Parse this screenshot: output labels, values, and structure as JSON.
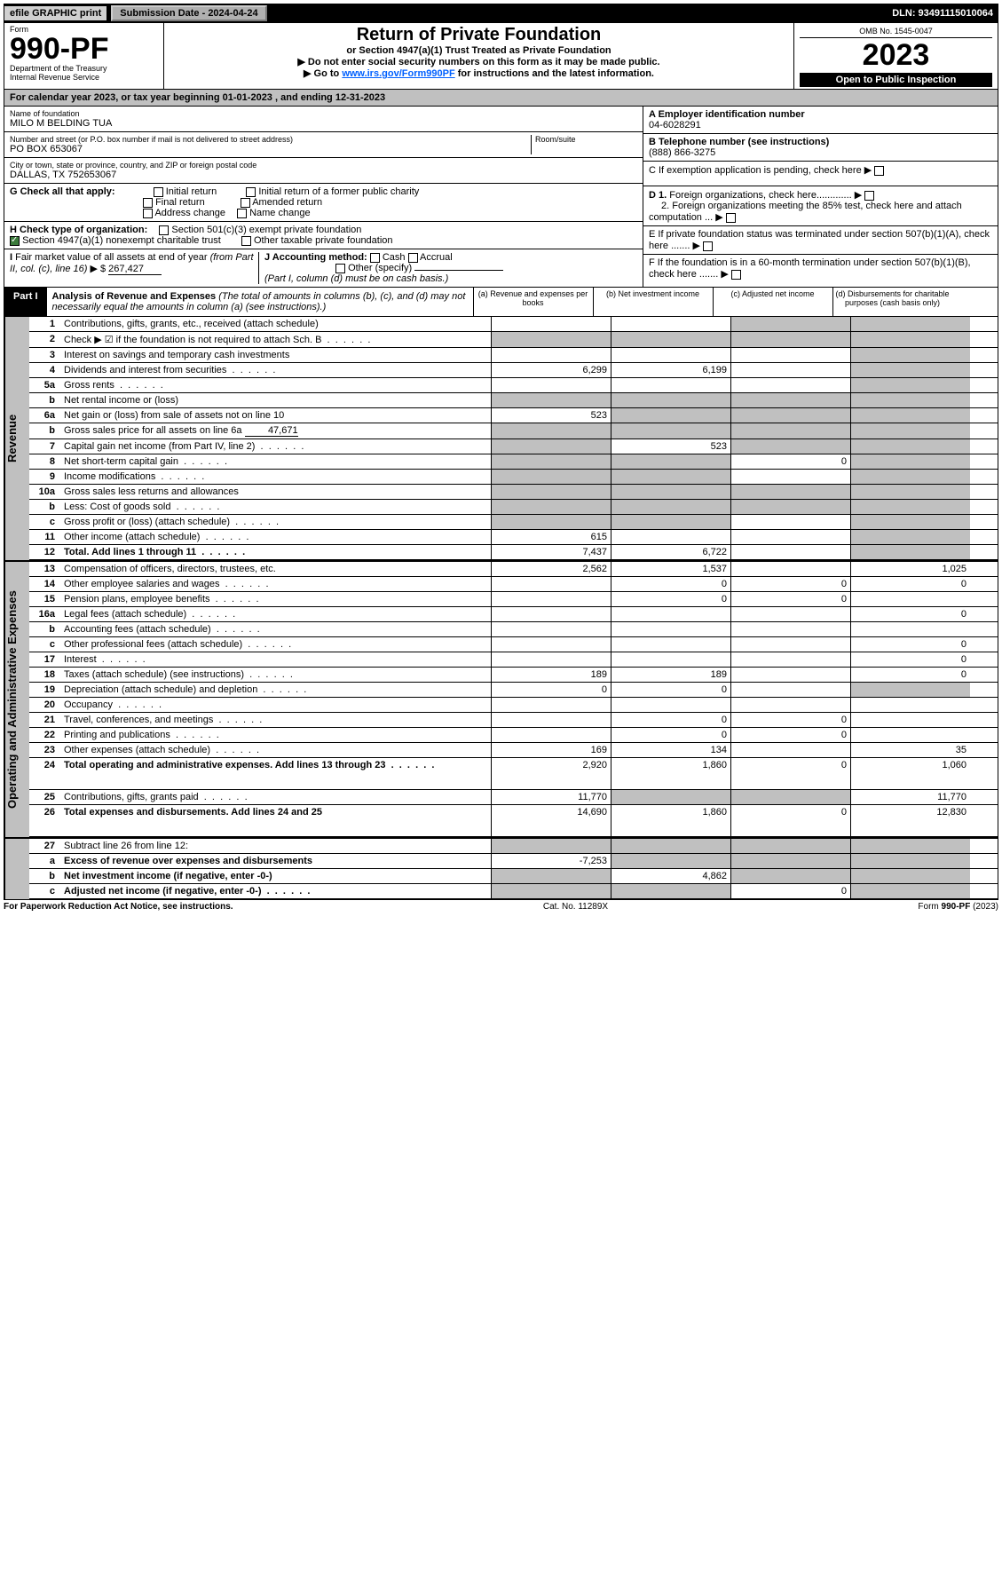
{
  "topbar": {
    "efile": "efile GRAPHIC print",
    "submission": "Submission Date - 2024-04-24",
    "dln": "DLN: 93491115010064"
  },
  "header": {
    "form_word": "Form",
    "form_num": "990-PF",
    "dept": "Department of the Treasury",
    "irs": "Internal Revenue Service",
    "title": "Return of Private Foundation",
    "subtitle": "or Section 4947(a)(1) Trust Treated as Private Foundation",
    "note1": "▶ Do not enter social security numbers on this form as it may be made public.",
    "note2_pre": "▶ Go to ",
    "note2_link": "www.irs.gov/Form990PF",
    "note2_post": " for instructions and the latest information.",
    "omb": "OMB No. 1545-0047",
    "year": "2023",
    "open": "Open to Public Inspection"
  },
  "calendar": {
    "pre": "For calendar year 2023, or tax year beginning ",
    "start": "01-01-2023",
    "mid": " , and ending ",
    "end": "12-31-2023"
  },
  "identity": {
    "name_lbl": "Name of foundation",
    "name": "MILO M BELDING TUA",
    "addr_lbl": "Number and street (or P.O. box number if mail is not delivered to street address)",
    "addr": "PO BOX 653067",
    "room_lbl": "Room/suite",
    "city_lbl": "City or town, state or province, country, and ZIP or foreign postal code",
    "city": "DALLAS, TX  752653067",
    "ein_lbl": "A Employer identification number",
    "ein": "04-6028291",
    "tel_lbl": "B Telephone number (see instructions)",
    "tel": "(888) 866-3275",
    "c_lbl": "C If exemption application is pending, check here",
    "d1": "D 1. Foreign organizations, check here.............",
    "d2": "2. Foreign organizations meeting the 85% test, check here and attach computation ...",
    "e": "E   If private foundation status was terminated under section 507(b)(1)(A), check here .......",
    "f": "F   If the foundation is in a 60-month termination under section 507(b)(1)(B), check here .......",
    "g_lbl": "G Check all that apply:",
    "g_opts": [
      "Initial return",
      "Final return",
      "Address change",
      "Initial return of a former public charity",
      "Amended return",
      "Name change"
    ],
    "h_lbl": "H Check type of organization:",
    "h1": "Section 501(c)(3) exempt private foundation",
    "h2": "Section 4947(a)(1) nonexempt charitable trust",
    "h3": "Other taxable private foundation",
    "i_lbl": "I Fair market value of all assets at end of year (from Part II, col. (c), line 16) ▶ $",
    "i_val": "267,427",
    "j_lbl": "J Accounting method:",
    "j_cash": "Cash",
    "j_accrual": "Accrual",
    "j_other": "Other (specify)",
    "j_note": "(Part I, column (d) must be on cash basis.)"
  },
  "part1": {
    "tab": "Part I",
    "title": "Analysis of Revenue and Expenses",
    "title_note": " (The total of amounts in columns (b), (c), and (d) may not necessarily equal the amounts in column (a) (see instructions).)",
    "cols": {
      "a": "(a) Revenue and expenses per books",
      "b": "(b) Net investment income",
      "c": "(c) Adjusted net income",
      "d": "(d) Disbursements for charitable purposes (cash basis only)"
    }
  },
  "sidebars": {
    "rev": "Revenue",
    "exp": "Operating and Administrative Expenses"
  },
  "rows": [
    {
      "n": "1",
      "d": "Contributions, gifts, grants, etc., received (attach schedule)",
      "a": "",
      "b": "",
      "c": "g",
      "dcol": "g"
    },
    {
      "n": "2",
      "d": "Check ▶ ☑ if the foundation is not required to attach Sch. B",
      "dots": true,
      "a": "g",
      "b": "g",
      "c": "g",
      "dcol": "g",
      "check": true,
      "bold_not": true
    },
    {
      "n": "3",
      "d": "Interest on savings and temporary cash investments",
      "a": "",
      "b": "",
      "c": "",
      "dcol": "g"
    },
    {
      "n": "4",
      "d": "Dividends and interest from securities",
      "dots": true,
      "a": "6,299",
      "b": "6,199",
      "c": "",
      "dcol": "g"
    },
    {
      "n": "5a",
      "d": "Gross rents",
      "dots": true,
      "a": "",
      "b": "",
      "c": "",
      "dcol": "g"
    },
    {
      "n": "b",
      "d": "Net rental income or (loss)",
      "inset": true,
      "a": "g",
      "b": "g",
      "c": "g",
      "dcol": "g"
    },
    {
      "n": "6a",
      "d": "Net gain or (loss) from sale of assets not on line 10",
      "a": "523",
      "b": "g",
      "c": "g",
      "dcol": "g"
    },
    {
      "n": "b",
      "d": "Gross sales price for all assets on line 6a",
      "inset": true,
      "val": "47,671",
      "a": "g",
      "b": "g",
      "c": "g",
      "dcol": "g"
    },
    {
      "n": "7",
      "d": "Capital gain net income (from Part IV, line 2)",
      "dots": true,
      "a": "g",
      "b": "523",
      "c": "g",
      "dcol": "g"
    },
    {
      "n": "8",
      "d": "Net short-term capital gain",
      "dots": true,
      "a": "g",
      "b": "g",
      "c": "0",
      "dcol": "g"
    },
    {
      "n": "9",
      "d": "Income modifications",
      "dots": true,
      "a": "g",
      "b": "g",
      "c": "",
      "dcol": "g"
    },
    {
      "n": "10a",
      "d": "Gross sales less returns and allowances",
      "inset": true,
      "a": "g",
      "b": "g",
      "c": "g",
      "dcol": "g"
    },
    {
      "n": "b",
      "d": "Less: Cost of goods sold",
      "dots": true,
      "inset": true,
      "a": "g",
      "b": "g",
      "c": "g",
      "dcol": "g"
    },
    {
      "n": "c",
      "d": "Gross profit or (loss) (attach schedule)",
      "dots": true,
      "a": "g",
      "b": "g",
      "c": "",
      "dcol": "g"
    },
    {
      "n": "11",
      "d": "Other income (attach schedule)",
      "dots": true,
      "a": "615",
      "b": "",
      "c": "",
      "dcol": "g"
    },
    {
      "n": "12",
      "d": "Total. Add lines 1 through 11",
      "dots": true,
      "bold": true,
      "a": "7,437",
      "b": "6,722",
      "c": "",
      "dcol": "g"
    }
  ],
  "rows_exp": [
    {
      "n": "13",
      "d": "Compensation of officers, directors, trustees, etc.",
      "a": "2,562",
      "b": "1,537",
      "c": "",
      "dcol": "1,025"
    },
    {
      "n": "14",
      "d": "Other employee salaries and wages",
      "dots": true,
      "a": "",
      "b": "0",
      "c": "0",
      "dcol": "0"
    },
    {
      "n": "15",
      "d": "Pension plans, employee benefits",
      "dots": true,
      "a": "",
      "b": "0",
      "c": "0",
      "dcol": ""
    },
    {
      "n": "16a",
      "d": "Legal fees (attach schedule)",
      "dots": true,
      "a": "",
      "b": "",
      "c": "",
      "dcol": "0"
    },
    {
      "n": "b",
      "d": "Accounting fees (attach schedule)",
      "dots": true,
      "a": "",
      "b": "",
      "c": "",
      "dcol": ""
    },
    {
      "n": "c",
      "d": "Other professional fees (attach schedule)",
      "dots": true,
      "a": "",
      "b": "",
      "c": "",
      "dcol": "0"
    },
    {
      "n": "17",
      "d": "Interest",
      "dots": true,
      "a": "",
      "b": "",
      "c": "",
      "dcol": "0"
    },
    {
      "n": "18",
      "d": "Taxes (attach schedule) (see instructions)",
      "dots": true,
      "a": "189",
      "b": "189",
      "c": "",
      "dcol": "0"
    },
    {
      "n": "19",
      "d": "Depreciation (attach schedule) and depletion",
      "dots": true,
      "a": "0",
      "b": "0",
      "c": "",
      "dcol": "g"
    },
    {
      "n": "20",
      "d": "Occupancy",
      "dots": true,
      "a": "",
      "b": "",
      "c": "",
      "dcol": ""
    },
    {
      "n": "21",
      "d": "Travel, conferences, and meetings",
      "dots": true,
      "a": "",
      "b": "0",
      "c": "0",
      "dcol": ""
    },
    {
      "n": "22",
      "d": "Printing and publications",
      "dots": true,
      "a": "",
      "b": "0",
      "c": "0",
      "dcol": ""
    },
    {
      "n": "23",
      "d": "Other expenses (attach schedule)",
      "dots": true,
      "a": "169",
      "b": "134",
      "c": "",
      "dcol": "35"
    },
    {
      "n": "24",
      "d": "Total operating and administrative expenses. Add lines 13 through 23",
      "dots": true,
      "bold": true,
      "a": "2,920",
      "b": "1,860",
      "c": "0",
      "dcol": "1,060",
      "tall": true
    },
    {
      "n": "25",
      "d": "Contributions, gifts, grants paid",
      "dots": true,
      "a": "11,770",
      "b": "g",
      "c": "g",
      "dcol": "11,770"
    },
    {
      "n": "26",
      "d": "Total expenses and disbursements. Add lines 24 and 25",
      "bold": true,
      "a": "14,690",
      "b": "1,860",
      "c": "0",
      "dcol": "12,830",
      "tall": true
    }
  ],
  "rows_bottom": [
    {
      "n": "27",
      "d": "Subtract line 26 from line 12:",
      "a": "g",
      "b": "g",
      "c": "g",
      "dcol": "g"
    },
    {
      "n": "a",
      "d": "Excess of revenue over expenses and disbursements",
      "bold": true,
      "a": "-7,253",
      "b": "g",
      "c": "g",
      "dcol": "g"
    },
    {
      "n": "b",
      "d": "Net investment income (if negative, enter -0-)",
      "bold": true,
      "a": "g",
      "b": "4,862",
      "c": "g",
      "dcol": "g"
    },
    {
      "n": "c",
      "d": "Adjusted net income (if negative, enter -0-)",
      "dots": true,
      "bold": true,
      "a": "g",
      "b": "g",
      "c": "0",
      "dcol": "g"
    }
  ],
  "footer": {
    "left": "For Paperwork Reduction Act Notice, see instructions.",
    "mid": "Cat. No. 11289X",
    "right": "Form 990-PF (2023)",
    "right_bold": "990-PF"
  }
}
